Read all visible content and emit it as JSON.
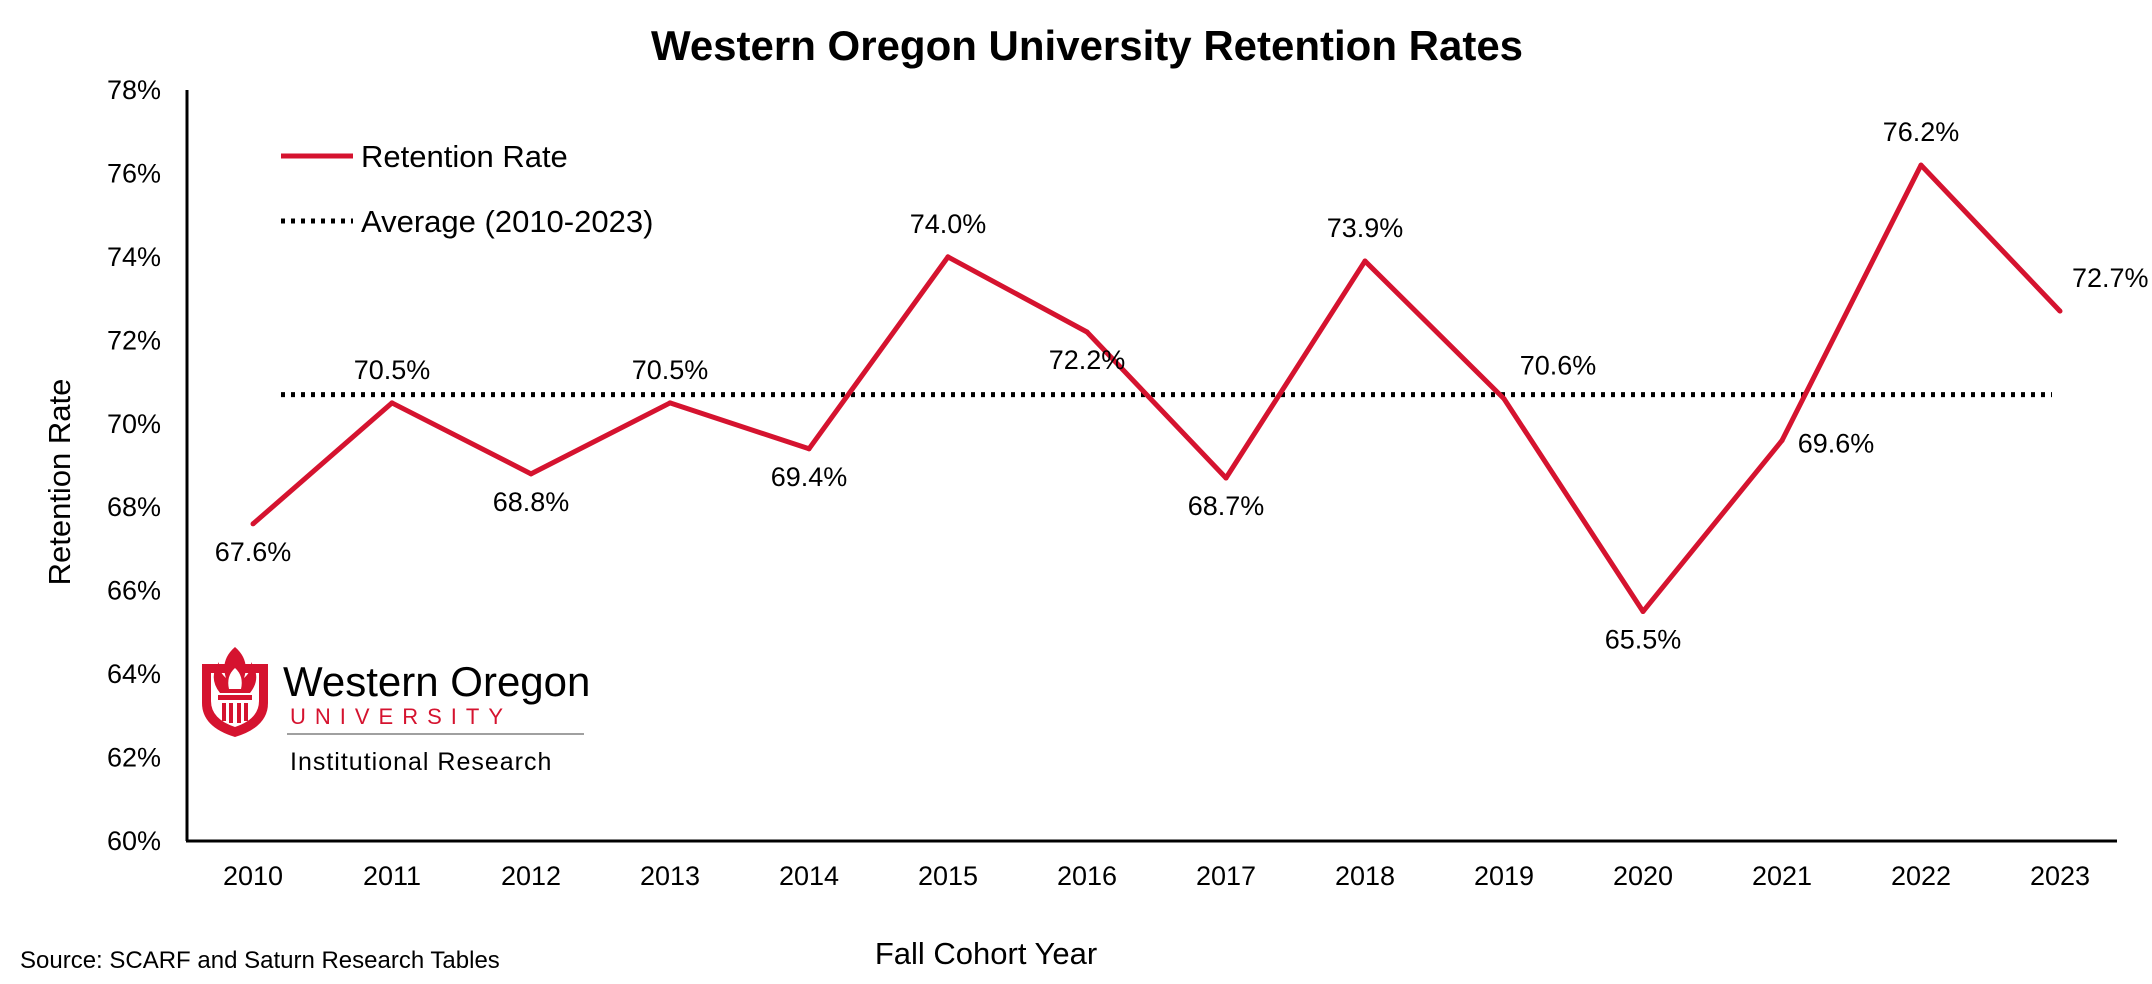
{
  "chart_data": {
    "type": "line",
    "title": "Western Oregon University Retention Rates",
    "xlabel": "Fall Cohort Year",
    "ylabel": "Retention Rate",
    "categories": [
      "2010",
      "2011",
      "2012",
      "2013",
      "2014",
      "2015",
      "2016",
      "2017",
      "2018",
      "2019",
      "2020",
      "2021",
      "2022",
      "2023"
    ],
    "series": [
      {
        "name": "Retention Rate",
        "values": [
          67.6,
          70.5,
          68.8,
          70.5,
          69.4,
          74.0,
          72.2,
          68.7,
          73.9,
          70.6,
          65.5,
          69.6,
          76.2,
          72.7
        ],
        "labels": [
          "67.6%",
          "70.5%",
          "68.8%",
          "70.5%",
          "69.4%",
          "74.0%",
          "72.2%",
          "68.7%",
          "73.9%",
          "70.6%",
          "65.5%",
          "69.6%",
          "76.2%",
          "72.7%"
        ],
        "color": "#d5132f",
        "style": "solid"
      },
      {
        "name": "Average (2010-2023)",
        "value": 70.7,
        "color": "#000000",
        "style": "dotted"
      }
    ],
    "ylim": [
      60,
      78
    ],
    "yticks": [
      60,
      62,
      64,
      66,
      68,
      70,
      72,
      74,
      76,
      78
    ],
    "ytick_labels": [
      "60%",
      "62%",
      "64%",
      "66%",
      "68%",
      "70%",
      "72%",
      "74%",
      "76%",
      "78%"
    ],
    "grid": false,
    "legend_position": "top-left"
  },
  "source_note": "Source: SCARF and Saturn Research Tables",
  "logo": {
    "name": "Western Oregon",
    "subname": "UNIVERSITY",
    "department": "Institutional Research",
    "brand_color": "#d5132f"
  }
}
